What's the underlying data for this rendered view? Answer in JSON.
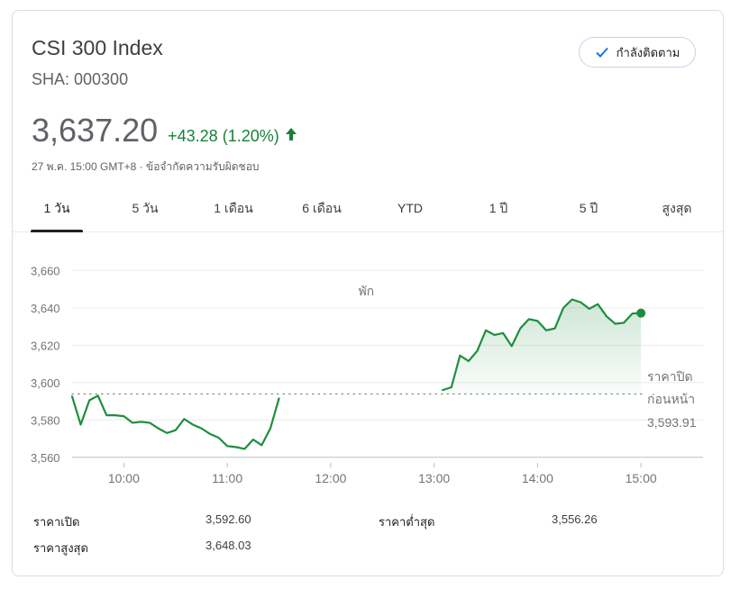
{
  "header": {
    "title": "CSI 300 Index",
    "ticker": "SHA: 000300",
    "follow_label": "กำลังติดตาม"
  },
  "quote": {
    "price": "3,637.20",
    "change": "+43.28 (1.20%)",
    "date_time": "27 พ.ค. 15:00 GMT+8",
    "separator": "·",
    "disclaimer": "ข้อจำกัดความรับผิดชอบ"
  },
  "tabs": [
    {
      "label": "1 วัน",
      "active": true
    },
    {
      "label": "5 วัน",
      "active": false
    },
    {
      "label": "1 เดือน",
      "active": false
    },
    {
      "label": "6 เดือน",
      "active": false
    },
    {
      "label": "YTD",
      "active": false
    },
    {
      "label": "1 ปี",
      "active": false
    },
    {
      "label": "5 ปี",
      "active": false
    },
    {
      "label": "สูงสุด",
      "active": false
    }
  ],
  "chart_data": {
    "type": "line",
    "x_unit": "time (hours)",
    "y_ticks": [
      3660,
      3640,
      3620,
      3600,
      3580,
      3560
    ],
    "y_tick_labels": [
      "3,660",
      "3,640",
      "3,620",
      "3,600",
      "3,580",
      "3,560"
    ],
    "x_ticks": [
      10,
      11,
      12,
      13,
      14,
      15
    ],
    "x_tick_labels": [
      "10:00",
      "11:00",
      "12:00",
      "13:00",
      "14:00",
      "15:00"
    ],
    "xlim": [
      9.5,
      15.6
    ],
    "ylim": [
      3557,
      3665
    ],
    "break_label": "พัก",
    "break_x": 12.3,
    "previous_close": 3593.91,
    "previous_close_label_line1": "ราคาปิด",
    "previous_close_label_line2": "ก่อนหน้า",
    "previous_close_value": "3,593.91",
    "line_color": "#1e8e3e",
    "grid": true,
    "morning": [
      [
        9.5,
        3592.6
      ],
      [
        9.583,
        3577.5
      ],
      [
        9.667,
        3590.5
      ],
      [
        9.75,
        3593.0
      ],
      [
        9.833,
        3582.5
      ],
      [
        9.917,
        3582.5
      ],
      [
        10.0,
        3582.0
      ],
      [
        10.083,
        3578.5
      ],
      [
        10.167,
        3579.0
      ],
      [
        10.25,
        3578.5
      ],
      [
        10.333,
        3575.5
      ],
      [
        10.417,
        3573.0
      ],
      [
        10.5,
        3574.5
      ],
      [
        10.583,
        3580.5
      ],
      [
        10.667,
        3577.5
      ],
      [
        10.75,
        3575.5
      ],
      [
        10.833,
        3572.5
      ],
      [
        10.917,
        3570.5
      ],
      [
        11.0,
        3566.0
      ],
      [
        11.083,
        3565.5
      ],
      [
        11.167,
        3564.5
      ],
      [
        11.25,
        3569.5
      ],
      [
        11.333,
        3566.5
      ],
      [
        11.417,
        3575.5
      ],
      [
        11.5,
        3591.5
      ]
    ],
    "afternoon": [
      [
        13.083,
        3596.0
      ],
      [
        13.167,
        3597.5
      ],
      [
        13.25,
        3614.5
      ],
      [
        13.333,
        3611.5
      ],
      [
        13.417,
        3617.0
      ],
      [
        13.5,
        3628.0
      ],
      [
        13.583,
        3625.5
      ],
      [
        13.667,
        3626.5
      ],
      [
        13.75,
        3619.5
      ],
      [
        13.833,
        3629.0
      ],
      [
        13.917,
        3634.0
      ],
      [
        14.0,
        3633.0
      ],
      [
        14.083,
        3628.0
      ],
      [
        14.167,
        3629.0
      ],
      [
        14.25,
        3640.0
      ],
      [
        14.333,
        3644.5
      ],
      [
        14.417,
        3643.0
      ],
      [
        14.5,
        3639.5
      ],
      [
        14.583,
        3642.0
      ],
      [
        14.667,
        3635.5
      ],
      [
        14.75,
        3631.5
      ],
      [
        14.833,
        3632.0
      ],
      [
        14.917,
        3637.0
      ],
      [
        15.0,
        3637.2
      ]
    ]
  },
  "stats": {
    "open_label": "ราคาเปิด",
    "open_value": "3,592.60",
    "high_label": "ราคาสูงสุด",
    "high_value": "3,648.03",
    "low_label": "ราคาต่ำสุด",
    "low_value": "3,556.26"
  }
}
